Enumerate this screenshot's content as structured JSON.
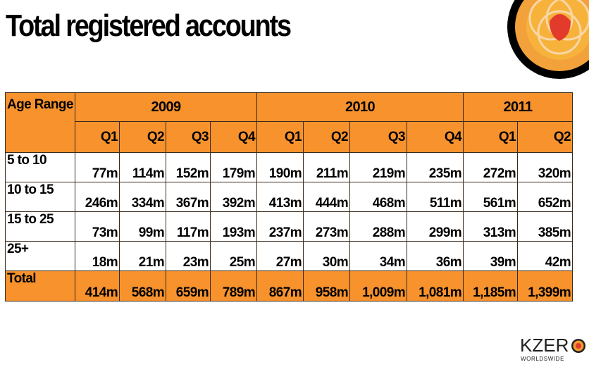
{
  "title": "Total registered accounts",
  "table": {
    "corner_header": "Age Range",
    "years": [
      {
        "label": "2009",
        "span": 4
      },
      {
        "label": "2010",
        "span": 4
      },
      {
        "label": "2011",
        "span": 2
      }
    ],
    "quarters": [
      "Q1",
      "Q2",
      "Q3",
      "Q4",
      "Q1",
      "Q2",
      "Q3",
      "Q4",
      "Q1",
      "Q2"
    ],
    "rows": [
      {
        "label": "5 to 10",
        "values": [
          "77m",
          "114m",
          "152m",
          "179m",
          "190m",
          "211m",
          "219m",
          "235m",
          "272m",
          "320m"
        ]
      },
      {
        "label": "10 to 15",
        "values": [
          "246m",
          "334m",
          "367m",
          "392m",
          "413m",
          "444m",
          "468m",
          "511m",
          "561m",
          "652m"
        ]
      },
      {
        "label": "15 to 25",
        "values": [
          "73m",
          "99m",
          "117m",
          "193m",
          "237m",
          "273m",
          "288m",
          "299m",
          "313m",
          "385m"
        ]
      },
      {
        "label": "25+",
        "values": [
          "18m",
          "21m",
          "23m",
          "25m",
          "27m",
          "30m",
          "34m",
          "36m",
          "39m",
          "42m"
        ]
      }
    ],
    "total": {
      "label": "Total",
      "values": [
        "414m",
        "568m",
        "659m",
        "789m",
        "867m",
        "958m",
        "1,009m",
        "1,081m",
        "1,185m",
        "1,399m"
      ]
    }
  },
  "brand": {
    "name": "KZER",
    "tagline": "WORLDSWIDE"
  },
  "colors": {
    "header_fill": "#f7922d",
    "border": "#3a2a1a"
  }
}
